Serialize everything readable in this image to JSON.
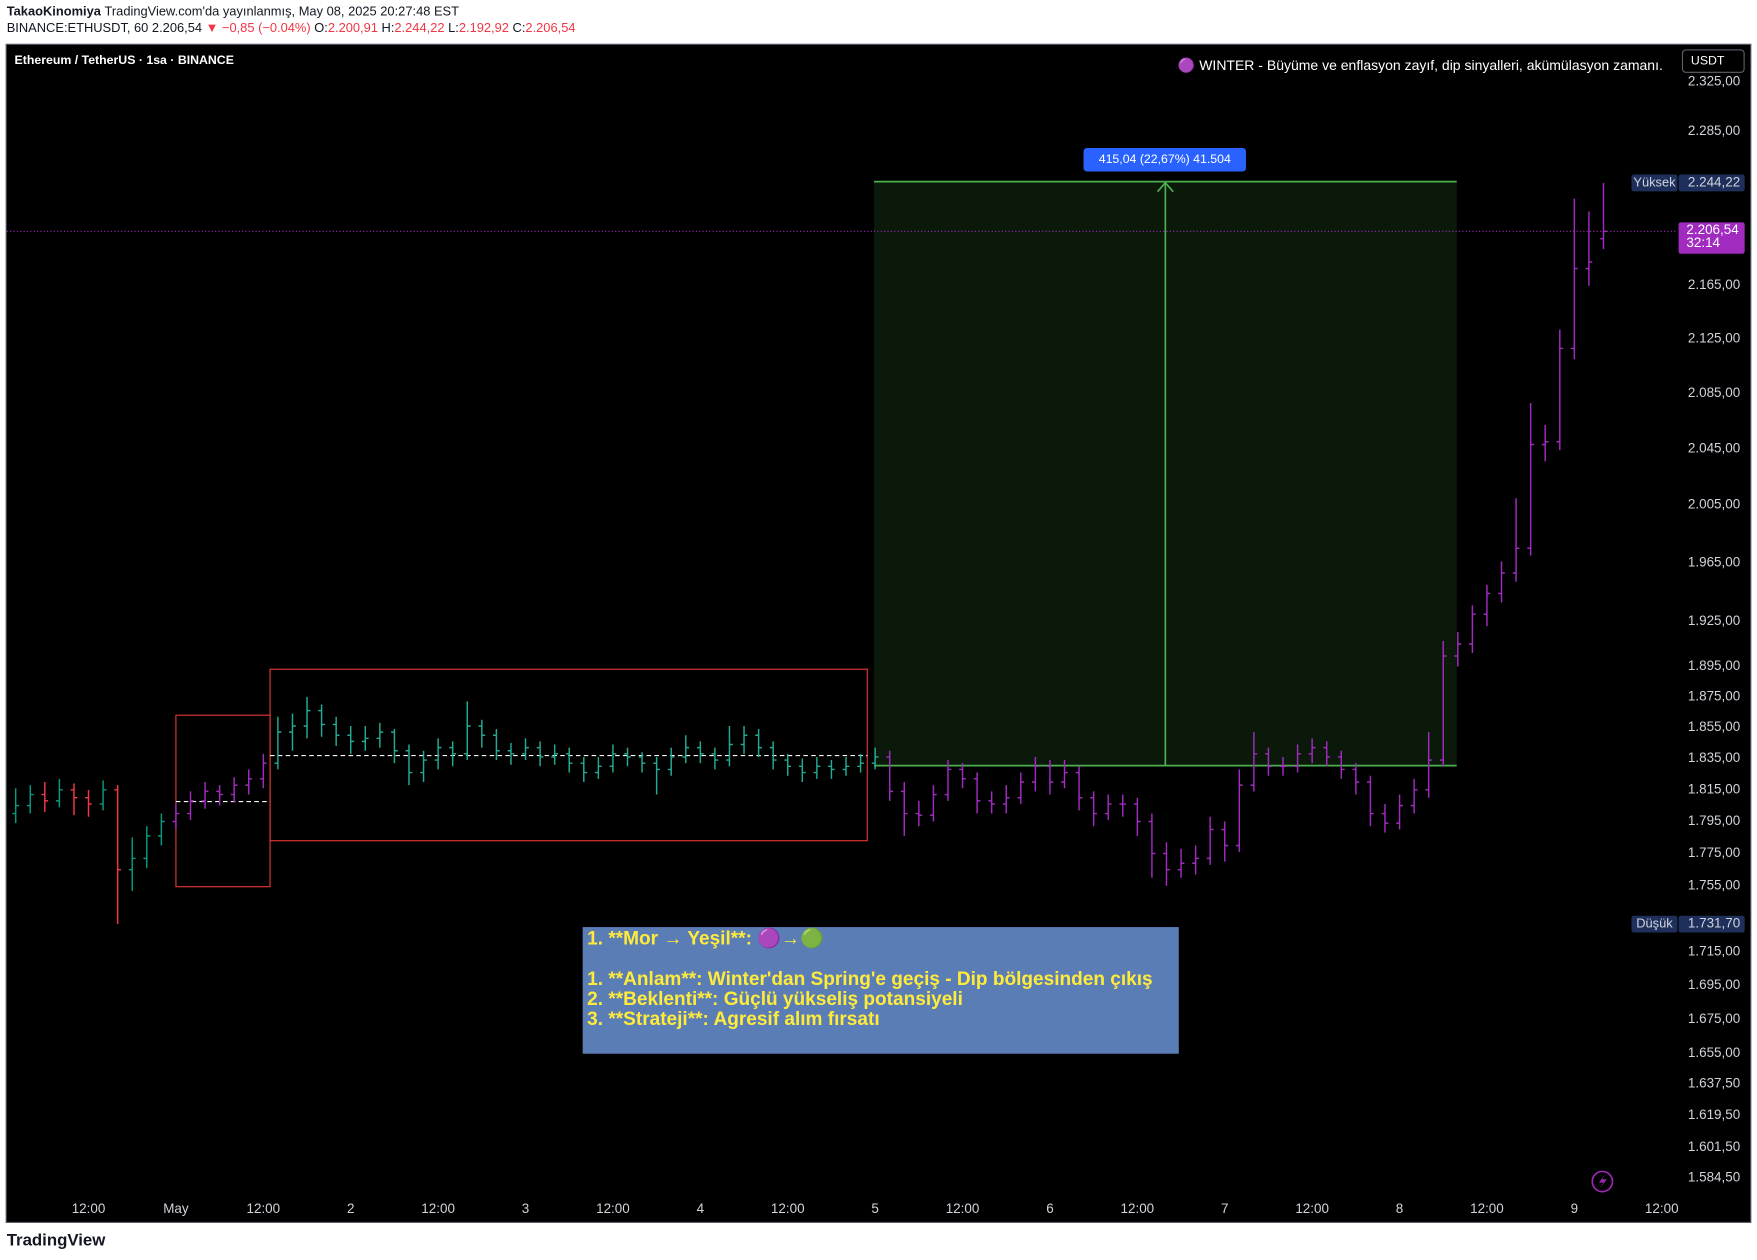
{
  "header": {
    "author": "TakaoKinomiya",
    "published": "TradingView.com'da yayınlanmış, May 08, 2025 20:27:48 EST",
    "symbol": "BINANCE:ETHUSDT, 60",
    "last": "2.206,54",
    "change": "▼ −0,85 (−0.04%)",
    "ohlc": [
      {
        "label": "O:",
        "value": "2.200,91"
      },
      {
        "label": "H:",
        "value": "2.244,22"
      },
      {
        "label": "L:",
        "value": "2.192,92"
      },
      {
        "label": "C:",
        "value": "2.206,54"
      }
    ]
  },
  "chart_data": {
    "type": "ohlc",
    "title": "Ethereum / TetherUS · 1sa · BINANCE",
    "currency": "USDT",
    "legend_note": "🟣 WINTER - Büyüme ve enflasyon zayıf, dip sinyalleri, akümülasyon zamanı.",
    "position_label": "415,04 (22,67%) 41.504",
    "text_box": [
      "1. **Mor → Yeşil**: 🟣→🟢",
      "1. **Anlam**: Winter'dan Spring'e geçiş - Dip bölgesinden çıkış",
      "2. **Beklenti**: Güçlü yükseliş potansiyeli",
      "3. **Strateji**: Agresif alım fırsatı"
    ],
    "log_scale": true,
    "grid": false,
    "ylim": [
      1575.8,
      2355.3
    ],
    "yticks": [
      {
        "value": 2325,
        "label": "2.325,00"
      },
      {
        "value": 2285,
        "label": "2.285,00"
      },
      {
        "value": 2165,
        "label": "2.165,00"
      },
      {
        "value": 2125,
        "label": "2.125,00"
      },
      {
        "value": 2085,
        "label": "2.085,00"
      },
      {
        "value": 2045,
        "label": "2.045,00"
      },
      {
        "value": 2005,
        "label": "2.005,00"
      },
      {
        "value": 1965,
        "label": "1.965,00"
      },
      {
        "value": 1925,
        "label": "1.925,00"
      },
      {
        "value": 1895,
        "label": "1.895,00"
      },
      {
        "value": 1875,
        "label": "1.875,00"
      },
      {
        "value": 1855,
        "label": "1.855,00"
      },
      {
        "value": 1835,
        "label": "1.835,00"
      },
      {
        "value": 1815,
        "label": "1.815,00"
      },
      {
        "value": 1795,
        "label": "1.795,00"
      },
      {
        "value": 1775,
        "label": "1.775,00"
      },
      {
        "value": 1755,
        "label": "1.755,00"
      },
      {
        "value": 1715,
        "label": "1.715,00"
      },
      {
        "value": 1695,
        "label": "1.695,00"
      },
      {
        "value": 1675,
        "label": "1.675,00"
      },
      {
        "value": 1655,
        "label": "1.655,00"
      },
      {
        "value": 1637.5,
        "label": "1.637,50"
      },
      {
        "value": 1619.5,
        "label": "1.619,50"
      },
      {
        "value": 1601.5,
        "label": "1.601,50"
      },
      {
        "value": 1584.5,
        "label": "1.584,50"
      }
    ],
    "high_marker": {
      "name": "Yüksek",
      "value": 2244.22,
      "label": "2.244,22"
    },
    "low_marker": {
      "name": "Düşük",
      "value": 1731.7,
      "label": "1.731,70"
    },
    "last_price": {
      "value": 2206.54,
      "label": "2.206,54",
      "countdown": "32:14"
    },
    "categories": [
      null,
      null,
      null,
      null,
      null,
      "12:00",
      null,
      null,
      null,
      null,
      null,
      "May",
      null,
      null,
      null,
      null,
      null,
      "12:00",
      null,
      null,
      null,
      null,
      null,
      "2",
      null,
      null,
      null,
      null,
      null,
      "12:00",
      null,
      null,
      null,
      null,
      null,
      "3",
      null,
      null,
      null,
      null,
      null,
      "12:00",
      null,
      null,
      null,
      null,
      null,
      "4",
      null,
      null,
      null,
      null,
      null,
      "12:00",
      null,
      null,
      null,
      null,
      null,
      "5",
      null,
      null,
      null,
      null,
      null,
      "12:00",
      null,
      null,
      null,
      null,
      null,
      "6",
      null,
      null,
      null,
      null,
      null,
      "12:00",
      null,
      null,
      null,
      null,
      null,
      "7",
      null,
      null,
      null,
      null,
      null,
      "12:00",
      null,
      null,
      null,
      null,
      null,
      "8",
      null,
      null,
      null,
      null,
      null,
      "12:00",
      null,
      null,
      null,
      null,
      null,
      "9",
      null,
      null,
      null,
      null,
      null,
      "12:00"
    ],
    "open": [
      1800,
      1805,
      1812,
      1808,
      1815,
      1810,
      1806,
      1815,
      1765,
      1772,
      1786,
      1795,
      1800,
      1808,
      1814,
      1812,
      1818,
      1822,
      1832,
      1852,
      1856,
      1866,
      1857,
      1850,
      1846,
      1848,
      1852,
      1840,
      1826,
      1834,
      1842,
      1838,
      1856,
      1850,
      1840,
      1838,
      1842,
      1836,
      1838,
      1832,
      1826,
      1830,
      1838,
      1836,
      1832,
      1828,
      1836,
      1842,
      1838,
      1834,
      1844,
      1850,
      1842,
      1834,
      1830,
      1826,
      1830,
      1828,
      1830,
      1832,
      1836,
      1814,
      1800,
      1799,
      1812,
      1828,
      1822,
      1808,
      1806,
      1810,
      1820,
      1830,
      1820,
      1826,
      1810,
      1800,
      1806,
      1806,
      1795,
      1775,
      1765,
      1769,
      1772,
      1790,
      1780,
      1818,
      1838,
      1830,
      1830,
      1838,
      1842,
      1836,
      1828,
      1820,
      1800,
      1794,
      1805,
      1815,
      1834,
      1902,
      1910,
      1930,
      1944,
      1958,
      1975,
      2048,
      2050,
      2118,
      2178,
      2200.91,
      null,
      null,
      null,
      null
    ],
    "high": [
      1816,
      1818,
      1820,
      1822,
      1819,
      1815,
      1821,
      1818,
      1785,
      1792,
      1800,
      1806,
      1814,
      1820,
      1818,
      1823,
      1828,
      1838,
      1862,
      1864,
      1875,
      1870,
      1862,
      1856,
      1856,
      1858,
      1854,
      1844,
      1840,
      1848,
      1846,
      1872,
      1860,
      1854,
      1845,
      1848,
      1846,
      1844,
      1842,
      1836,
      1836,
      1844,
      1842,
      1839,
      1836,
      1842,
      1850,
      1846,
      1842,
      1856,
      1856,
      1854,
      1846,
      1838,
      1835,
      1836,
      1834,
      1836,
      1838,
      1842,
      1840,
      1820,
      1808,
      1818,
      1834,
      1832,
      1826,
      1814,
      1818,
      1826,
      1836,
      1834,
      1834,
      1830,
      1814,
      1812,
      1812,
      1810,
      1800,
      1782,
      1778,
      1780,
      1798,
      1795,
      1828,
      1852,
      1842,
      1836,
      1844,
      1848,
      1846,
      1840,
      1832,
      1824,
      1806,
      1812,
      1822,
      1852,
      1912,
      1918,
      1936,
      1950,
      1966,
      2010,
      2078,
      2062,
      2132,
      2232,
      2222,
      2244.22,
      null,
      null,
      null,
      null
    ],
    "low": [
      1794,
      1800,
      1801,
      1804,
      1799,
      1798,
      1802,
      1731.7,
      1752,
      1766,
      1780,
      1790,
      1796,
      1803,
      1805,
      1807,
      1812,
      1816,
      1828,
      1840,
      1848,
      1849,
      1843,
      1838,
      1840,
      1842,
      1832,
      1818,
      1820,
      1828,
      1830,
      1834,
      1842,
      1834,
      1831,
      1834,
      1830,
      1831,
      1826,
      1820,
      1822,
      1826,
      1830,
      1826,
      1812,
      1824,
      1832,
      1832,
      1828,
      1830,
      1838,
      1836,
      1828,
      1824,
      1820,
      1822,
      1822,
      1824,
      1826,
      1828,
      1808,
      1786,
      1792,
      1795,
      1808,
      1816,
      1800,
      1800,
      1800,
      1806,
      1814,
      1812,
      1816,
      1802,
      1792,
      1796,
      1798,
      1786,
      1760,
      1755,
      1760,
      1762,
      1768,
      1770,
      1776,
      1814,
      1824,
      1824,
      1826,
      1832,
      1830,
      1822,
      1812,
      1792,
      1788,
      1790,
      1800,
      1810,
      1830,
      1895,
      1904,
      1922,
      1938,
      1952,
      1970,
      2036,
      2044,
      2110,
      2165,
      2192.92,
      null,
      null,
      null,
      null
    ],
    "close": [
      1805,
      1812,
      1808,
      1815,
      1810,
      1806,
      1815,
      1765,
      1772,
      1786,
      1795,
      1800,
      1808,
      1814,
      1812,
      1818,
      1822,
      1832,
      1852,
      1856,
      1866,
      1857,
      1850,
      1846,
      1848,
      1852,
      1840,
      1826,
      1834,
      1842,
      1838,
      1856,
      1850,
      1840,
      1838,
      1842,
      1836,
      1838,
      1832,
      1826,
      1830,
      1838,
      1836,
      1832,
      1828,
      1836,
      1842,
      1838,
      1834,
      1844,
      1850,
      1842,
      1834,
      1830,
      1826,
      1830,
      1828,
      1830,
      1832,
      1836,
      1814,
      1800,
      1799,
      1812,
      1828,
      1822,
      1808,
      1806,
      1810,
      1820,
      1830,
      1820,
      1826,
      1810,
      1800,
      1806,
      1806,
      1795,
      1775,
      1765,
      1769,
      1772,
      1790,
      1780,
      1818,
      1838,
      1830,
      1830,
      1838,
      1842,
      1836,
      1828,
      1820,
      1800,
      1794,
      1805,
      1815,
      1834,
      1902,
      1910,
      1930,
      1944,
      1958,
      1975,
      2048,
      2050,
      2118,
      2178,
      2183,
      2206.54,
      null,
      null,
      null,
      null
    ],
    "bar_colors": [
      "#089981",
      "#089981",
      "#f23645",
      "#089981",
      "#f23645",
      "#f23645",
      "#089981",
      "#f23645",
      "#089981",
      "#089981",
      "#089981",
      "#a12bbf",
      "#a12bbf",
      "#a12bbf",
      "#a12bbf",
      "#a12bbf",
      "#a12bbf",
      "#a12bbf",
      "#22ab94",
      "#22ab94",
      "#22ab94",
      "#22ab94",
      "#22ab94",
      "#22ab94",
      "#22ab94",
      "#22ab94",
      "#22ab94",
      "#22ab94",
      "#22ab94",
      "#22ab94",
      "#22ab94",
      "#22ab94",
      "#22ab94",
      "#22ab94",
      "#22ab94",
      "#22ab94",
      "#22ab94",
      "#22ab94",
      "#22ab94",
      "#22ab94",
      "#22ab94",
      "#22ab94",
      "#22ab94",
      "#22ab94",
      "#22ab94",
      "#22ab94",
      "#22ab94",
      "#22ab94",
      "#22ab94",
      "#22ab94",
      "#22ab94",
      "#22ab94",
      "#22ab94",
      "#22ab94",
      "#22ab94",
      "#22ab94",
      "#22ab94",
      "#22ab94",
      "#22ab94",
      "#22ab94",
      "#a12bbf",
      "#a12bbf",
      "#a12bbf",
      "#a12bbf",
      "#a12bbf",
      "#a12bbf",
      "#a12bbf",
      "#a12bbf",
      "#a12bbf",
      "#a12bbf",
      "#a12bbf",
      "#a12bbf",
      "#a12bbf",
      "#a12bbf",
      "#a12bbf",
      "#a12bbf",
      "#a12bbf",
      "#a12bbf",
      "#a12bbf",
      "#a12bbf",
      "#a12bbf",
      "#a12bbf",
      "#a12bbf",
      "#a12bbf",
      "#a12bbf",
      "#a12bbf",
      "#a12bbf",
      "#a12bbf",
      "#a12bbf",
      "#a12bbf",
      "#a12bbf",
      "#a12bbf",
      "#a12bbf",
      "#a12bbf",
      "#a12bbf",
      "#a12bbf",
      "#a12bbf",
      "#a12bbf",
      "#a12bbf",
      "#a12bbf",
      "#a12bbf",
      "#a12bbf",
      "#a12bbf",
      "#a12bbf",
      "#a12bbf",
      "#a12bbf",
      "#a12bbf",
      "#a12bbf",
      "#a12bbf",
      "#a12bbf",
      null,
      null,
      null,
      null
    ],
    "footer": "TradingView"
  }
}
